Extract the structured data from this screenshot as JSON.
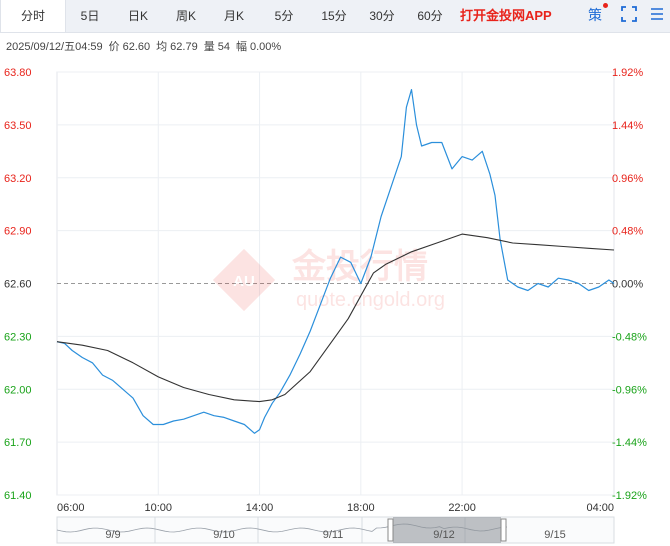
{
  "tabs": [
    {
      "label": "分时",
      "active": true
    },
    {
      "label": "5日"
    },
    {
      "label": "日K"
    },
    {
      "label": "周K"
    },
    {
      "label": "月K"
    },
    {
      "label": "5分"
    },
    {
      "label": "15分"
    },
    {
      "label": "30分"
    },
    {
      "label": "60分"
    }
  ],
  "promo_label": "打开金投网APP",
  "strategy_label": "策",
  "info": {
    "datetime": "2025/09/12/五04:59",
    "price_label": "价",
    "price": "62.60",
    "avg_label": "均",
    "avg": "62.79",
    "volume_label": "量",
    "volume": "54",
    "change_label": "幅",
    "change": "0.00%"
  },
  "watermark": {
    "text": "金投行情",
    "badge": "AU",
    "url": "quote.cngold.org"
  },
  "colors": {
    "up": "#e8231b",
    "down": "#1aa31a",
    "price_line": "#2b8fdb",
    "avg_line": "#333333",
    "accent": "#1e6bd6"
  },
  "chart_data": {
    "type": "line",
    "ylim": [
      61.4,
      63.8
    ],
    "base_price": 62.6,
    "yticks": [
      "63.80",
      "63.50",
      "63.20",
      "62.90",
      "62.60",
      "62.30",
      "62.00",
      "61.70",
      "61.40"
    ],
    "pct_ticks": [
      "1.92%",
      "1.44%",
      "0.96%",
      "0.48%",
      "0.00%",
      "-0.48%",
      "-0.96%",
      "-1.44%",
      "-1.92%"
    ],
    "xticks": [
      "06:00",
      "10:00",
      "14:00",
      "18:00",
      "22:00",
      "04:00"
    ],
    "x_hours": [
      0,
      4,
      8,
      12,
      16,
      22
    ],
    "series": [
      {
        "key": "price",
        "x": [
          0,
          0.3,
          0.6,
          1.0,
          1.4,
          1.8,
          2.2,
          2.6,
          3.0,
          3.4,
          3.8,
          4.2,
          4.6,
          5.0,
          5.4,
          5.8,
          6.2,
          6.6,
          7.0,
          7.4,
          7.8,
          8.0,
          8.2,
          8.5,
          8.8,
          9.2,
          9.6,
          10.0,
          10.4,
          10.8,
          11.2,
          11.6,
          12.0,
          12.4,
          12.8,
          13.2,
          13.6,
          13.8,
          14.0,
          14.2,
          14.4,
          14.8,
          15.2,
          15.6,
          16.0,
          16.4,
          16.8,
          17.1,
          17.3,
          17.5,
          17.8,
          18.2,
          18.6,
          19.0,
          19.4,
          19.8,
          20.2,
          20.6,
          21.0,
          21.4,
          21.8,
          22.0
        ],
        "values": [
          62.27,
          62.26,
          62.22,
          62.18,
          62.15,
          62.08,
          62.05,
          62.0,
          61.95,
          61.85,
          61.8,
          61.8,
          61.82,
          61.83,
          61.85,
          61.87,
          61.85,
          61.84,
          61.82,
          61.8,
          61.75,
          61.77,
          61.84,
          61.92,
          61.98,
          62.08,
          62.2,
          62.33,
          62.48,
          62.63,
          62.75,
          62.72,
          62.6,
          62.75,
          62.98,
          63.15,
          63.32,
          63.6,
          63.7,
          63.5,
          63.38,
          63.4,
          63.4,
          63.25,
          63.32,
          63.3,
          63.35,
          63.22,
          63.1,
          62.85,
          62.62,
          62.58,
          62.56,
          62.6,
          62.58,
          62.63,
          62.62,
          62.6,
          62.56,
          62.58,
          62.62,
          62.6
        ]
      },
      {
        "key": "avg",
        "x": [
          0,
          1,
          2,
          3,
          4,
          5,
          6,
          7,
          8,
          8.5,
          9,
          10,
          11,
          11.5,
          12,
          12.5,
          13,
          14,
          15,
          16,
          17,
          18,
          19,
          20,
          21,
          22
        ],
        "values": [
          62.27,
          62.25,
          62.22,
          62.15,
          62.07,
          62.01,
          61.97,
          61.94,
          61.93,
          61.94,
          61.97,
          62.1,
          62.3,
          62.4,
          62.53,
          62.66,
          62.71,
          62.78,
          62.83,
          62.88,
          62.86,
          62.83,
          62.82,
          62.81,
          62.8,
          62.79
        ]
      }
    ]
  },
  "range_labels": [
    "9/9",
    "9/10",
    "9/11",
    "9/12",
    "9/15"
  ]
}
